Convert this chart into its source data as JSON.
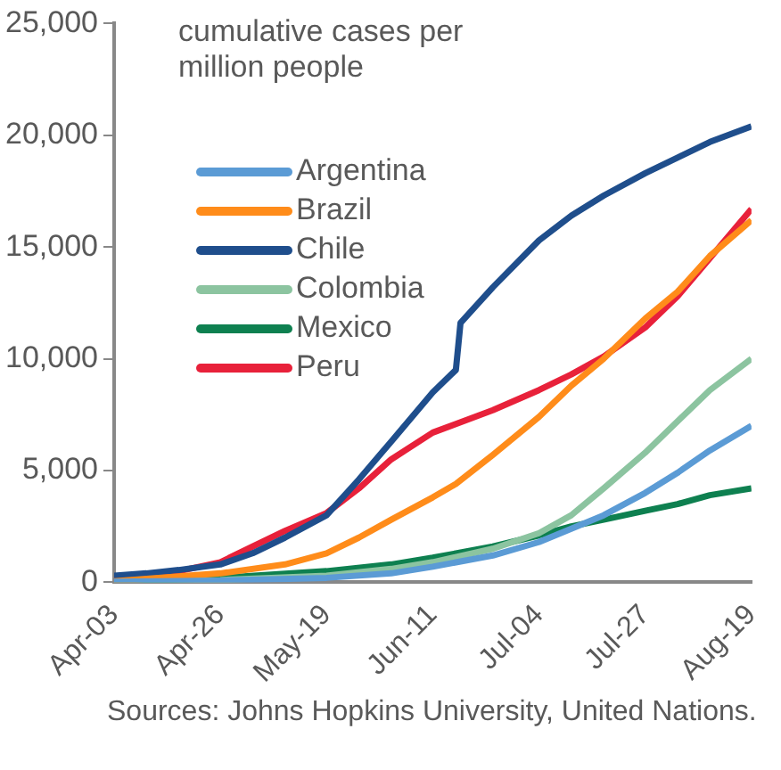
{
  "chart_data": {
    "type": "line",
    "ylabel": "cumulative cases per million people",
    "legend": "top left",
    "grid": false,
    "annotations": [
      "Sources: Johns Hopkins University, United Nations."
    ],
    "xlim": [
      "--04-03",
      "--08-19"
    ],
    "xticks": [
      {
        "value": "--04-03",
        "label": "Apr-03"
      },
      {
        "value": "--04-26",
        "label": "Apr-26"
      },
      {
        "value": "--05-19",
        "label": "May-19"
      },
      {
        "value": "--06-11",
        "label": "Jun-11"
      },
      {
        "value": "--07-04",
        "label": "Jul-04"
      },
      {
        "value": "--07-27",
        "label": "Jul-27"
      },
      {
        "value": "--08-19",
        "label": "Aug-19"
      }
    ],
    "ylim": [
      0,
      25000
    ],
    "yticks": [
      {
        "value": 0,
        "label": "0"
      },
      {
        "value": 5000,
        "label": "5,000"
      },
      {
        "value": 10000,
        "label": "10,000"
      },
      {
        "value": 15000,
        "label": "15,000"
      },
      {
        "value": 20000,
        "label": "20,000"
      },
      {
        "value": 25000,
        "label": "25,000"
      }
    ],
    "series": [
      {
        "name": "Argentina",
        "color": "#5b9bd5",
        "x": [
          "--04-03",
          "--04-26",
          "--05-19",
          "--06-02",
          "--06-11",
          "--06-24",
          "--07-04",
          "--07-11",
          "--07-18",
          "--07-27",
          "--08-03",
          "--08-10",
          "--08-19"
        ],
        "values": [
          30,
          80,
          200,
          400,
          700,
          1200,
          1800,
          2400,
          3000,
          4000,
          4900,
          5900,
          7000
        ]
      },
      {
        "name": "Brazil",
        "color": "#ff8c1a",
        "x": [
          "--04-03",
          "--04-26",
          "--05-10",
          "--05-19",
          "--05-26",
          "--06-02",
          "--06-11",
          "--06-16",
          "--06-24",
          "--07-04",
          "--07-11",
          "--07-18",
          "--07-27",
          "--08-03",
          "--08-10",
          "--08-19"
        ],
        "values": [
          50,
          400,
          800,
          1300,
          2000,
          2800,
          3800,
          4400,
          5700,
          7400,
          8800,
          10000,
          11800,
          13000,
          14600,
          16200
        ]
      },
      {
        "name": "Chile",
        "color": "#1f4e8c",
        "x": [
          "--04-03",
          "--04-10",
          "--04-17",
          "--04-26",
          "--05-03",
          "--05-10",
          "--05-19",
          "--05-26",
          "--06-02",
          "--06-11",
          "--06-16",
          "--06-17",
          "--06-24",
          "--07-04",
          "--07-11",
          "--07-18",
          "--07-27",
          "--08-03",
          "--08-10",
          "--08-19"
        ],
        "values": [
          300,
          400,
          550,
          800,
          1300,
          2000,
          3000,
          4600,
          6300,
          8500,
          9500,
          11600,
          13200,
          15300,
          16400,
          17300,
          18300,
          19000,
          19700,
          20400
        ]
      },
      {
        "name": "Colombia",
        "color": "#8cc4a0",
        "x": [
          "--04-03",
          "--04-26",
          "--05-19",
          "--06-02",
          "--06-11",
          "--06-24",
          "--07-04",
          "--07-11",
          "--07-18",
          "--07-27",
          "--08-03",
          "--08-10",
          "--08-19"
        ],
        "values": [
          30,
          100,
          300,
          600,
          900,
          1500,
          2200,
          3000,
          4200,
          5800,
          7200,
          8600,
          10000
        ]
      },
      {
        "name": "Mexico",
        "color": "#0e8050",
        "x": [
          "--04-03",
          "--04-26",
          "--05-19",
          "--06-02",
          "--06-11",
          "--06-24",
          "--07-04",
          "--07-11",
          "--07-18",
          "--07-27",
          "--08-03",
          "--08-10",
          "--08-19"
        ],
        "values": [
          20,
          200,
          500,
          800,
          1100,
          1600,
          2100,
          2500,
          2800,
          3200,
          3500,
          3900,
          4200
        ]
      },
      {
        "name": "Peru",
        "color": "#e8213a",
        "x": [
          "--04-03",
          "--04-10",
          "--04-17",
          "--04-26",
          "--05-03",
          "--05-10",
          "--05-19",
          "--05-26",
          "--06-02",
          "--06-11",
          "--06-24",
          "--07-04",
          "--07-11",
          "--07-18",
          "--07-27",
          "--08-03",
          "--08-10",
          "--08-19"
        ],
        "values": [
          150,
          300,
          500,
          900,
          1600,
          2300,
          3100,
          4200,
          5500,
          6700,
          7700,
          8600,
          9300,
          10100,
          11400,
          12800,
          14500,
          16700
        ]
      }
    ]
  }
}
